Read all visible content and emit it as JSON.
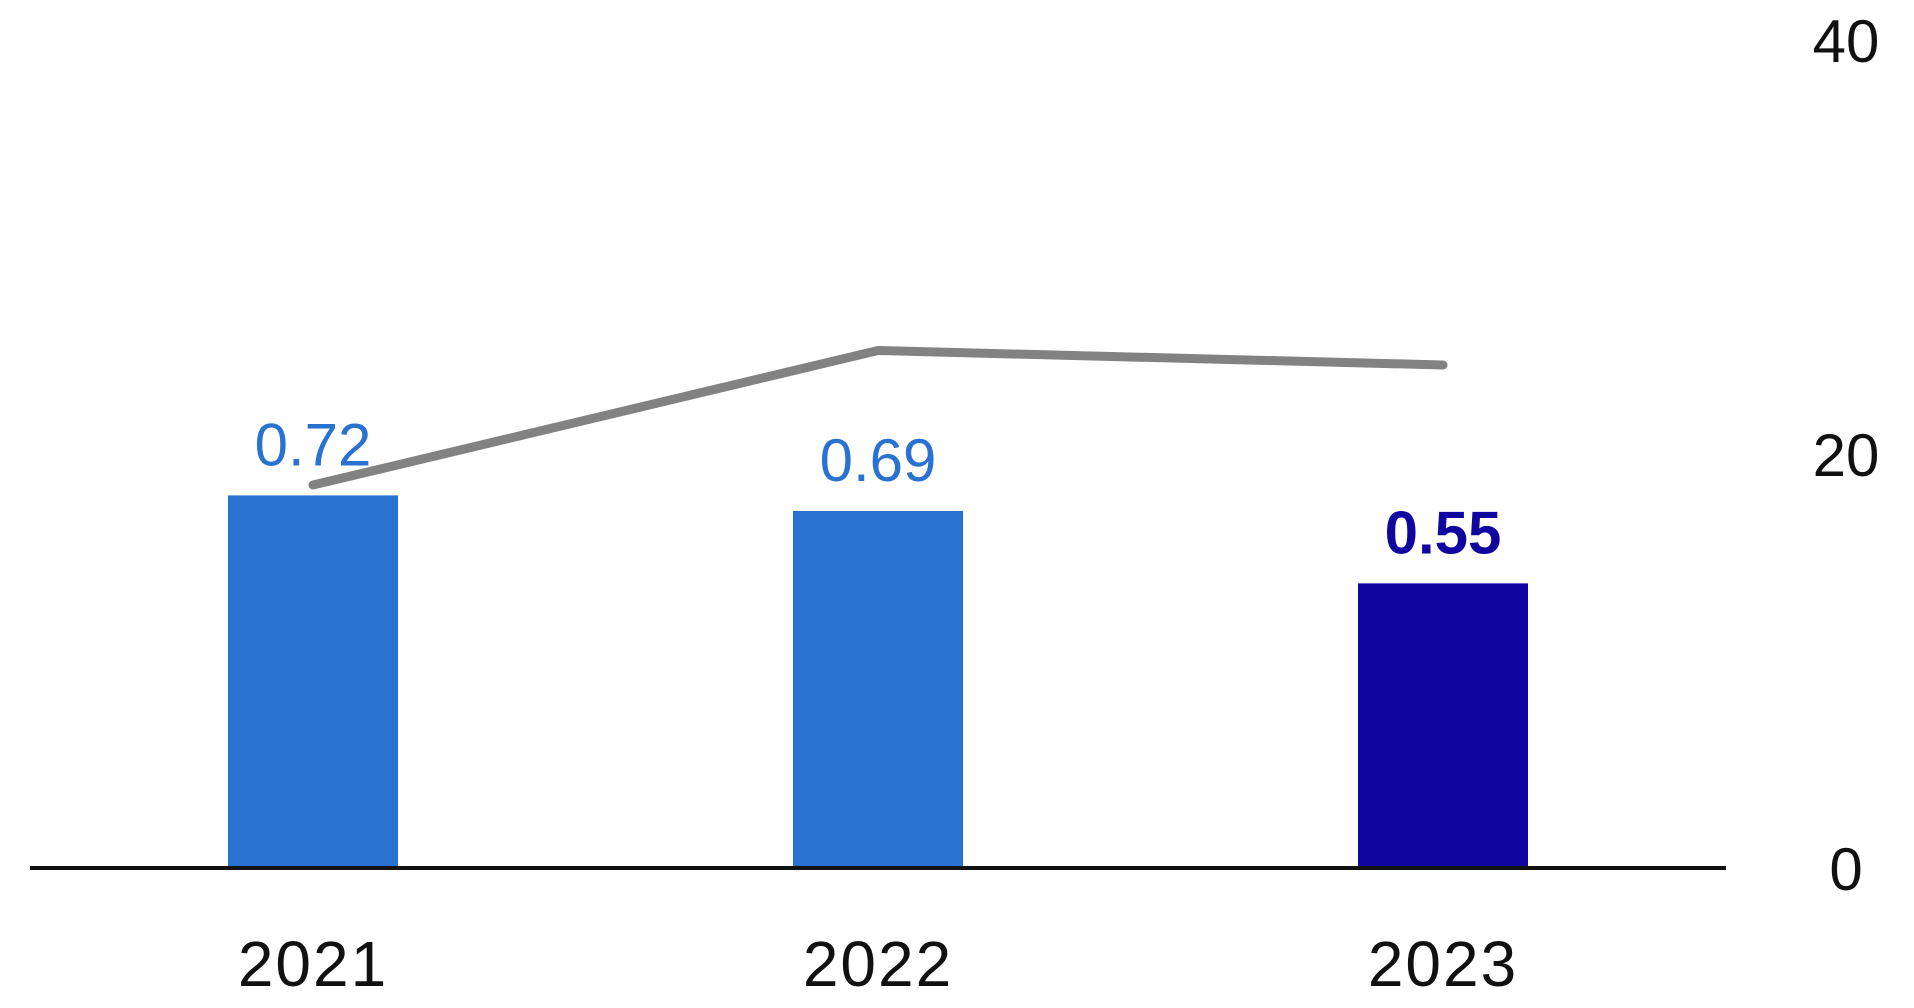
{
  "chart_data": {
    "type": "bar",
    "categories": [
      "2021",
      "2022",
      "2023"
    ],
    "series": [
      {
        "type": "bar",
        "values": [
          0.72,
          0.69,
          0.55
        ],
        "value_labels": [
          "0.72",
          "0.69",
          "0.55"
        ],
        "colors": [
          "#2972d0",
          "#2972d0",
          "#10069f"
        ],
        "label_colors": [
          "#2972d0",
          "#2972d0",
          "#10069f"
        ],
        "axis": "left",
        "ylim": [
          0,
          1.6
        ]
      },
      {
        "type": "line",
        "values": [
          18.5,
          25,
          24.3
        ],
        "color": "#828282",
        "axis": "right"
      }
    ],
    "y2_axis": {
      "position": "right",
      "ylim": [
        0,
        40
      ],
      "ticks": [
        0,
        20,
        40
      ],
      "tick_labels": [
        "0",
        "20",
        "40"
      ]
    },
    "title": "",
    "xlabel": "",
    "ylabel": "",
    "grid": false,
    "legend": "none",
    "highlight_index": 2
  }
}
